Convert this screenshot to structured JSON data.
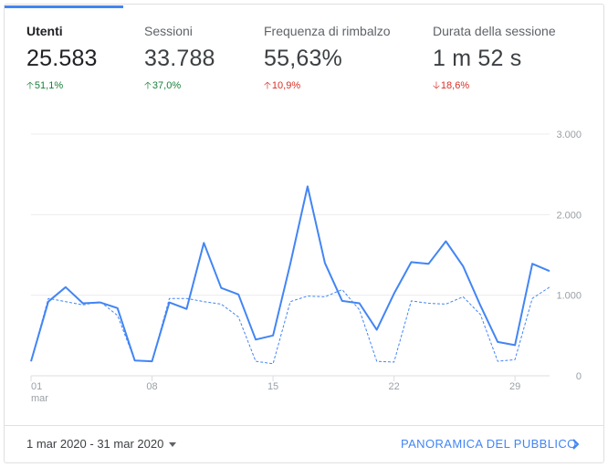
{
  "metrics": [
    {
      "label": "Utenti",
      "value": "25.583",
      "change": "51,1%",
      "direction": "up",
      "active": true
    },
    {
      "label": "Sessioni",
      "value": "33.788",
      "change": "37,0%",
      "direction": "up",
      "active": false
    },
    {
      "label": "Frequenza di rimbalzo",
      "value": "55,63%",
      "change": "10,9%",
      "direction": "up-red",
      "active": false
    },
    {
      "label": "Durata della sessione",
      "value": "1 m 52 s",
      "change": "18,6%",
      "direction": "down",
      "active": false
    }
  ],
  "colors": {
    "accent": "#4285f4",
    "positive": "#188038",
    "negative": "#d93025"
  },
  "footer": {
    "date_range": "1 mar 2020 - 31 mar 2020",
    "link_label": "PANORAMICA DEL PUBBLICO"
  },
  "chart_data": {
    "type": "line",
    "x": [
      1,
      2,
      3,
      4,
      5,
      6,
      7,
      8,
      9,
      10,
      11,
      12,
      13,
      14,
      15,
      16,
      17,
      18,
      19,
      20,
      21,
      22,
      23,
      24,
      25,
      26,
      27,
      28,
      29,
      30,
      31
    ],
    "x_ticks": [
      {
        "day": 1,
        "label": "01",
        "sublabel": "mar"
      },
      {
        "day": 8,
        "label": "08"
      },
      {
        "day": 15,
        "label": "15"
      },
      {
        "day": 22,
        "label": "22"
      },
      {
        "day": 29,
        "label": "29"
      }
    ],
    "y_ticks": [
      "0",
      "1.000",
      "2.000",
      "3.000"
    ],
    "ylim": [
      0,
      3000
    ],
    "grid": true,
    "series": [
      {
        "style": "solid",
        "values": [
          180,
          920,
          1100,
          900,
          910,
          840,
          190,
          180,
          910,
          830,
          1650,
          1090,
          1010,
          450,
          500,
          1390,
          2350,
          1400,
          930,
          900,
          570,
          1020,
          1410,
          1390,
          1670,
          1360,
          870,
          420,
          380,
          1390,
          1300
        ]
      },
      {
        "style": "dashed",
        "values": [
          180,
          960,
          920,
          880,
          920,
          750,
          190,
          180,
          960,
          960,
          920,
          890,
          730,
          180,
          150,
          920,
          990,
          980,
          1070,
          820,
          180,
          170,
          930,
          900,
          890,
          980,
          760,
          180,
          200,
          960,
          1100
        ]
      }
    ]
  }
}
